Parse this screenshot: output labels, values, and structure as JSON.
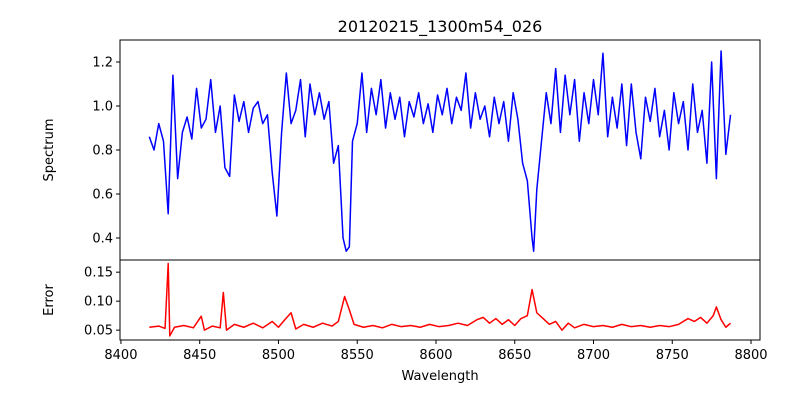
{
  "chart_data": [
    {
      "type": "line",
      "title": "20120215_1300m54_026",
      "xlabel": "",
      "ylabel": "Spectrum",
      "xlim": [
        8399.4,
        8805.7
      ],
      "ylim": [
        0.3,
        1.3
      ],
      "yticks": [
        0.4,
        0.6,
        0.8,
        1.0,
        1.2
      ],
      "ytick_labels": [
        "0.4",
        "0.6",
        "0.8",
        "1.0",
        "1.2"
      ],
      "color": "#0000ff",
      "grid": false,
      "series": [
        {
          "name": "Spectrum",
          "points": [
            [
              8418,
              0.86
            ],
            [
              8421,
              0.8
            ],
            [
              8424,
              0.92
            ],
            [
              8427,
              0.84
            ],
            [
              8430,
              0.51
            ],
            [
              8433,
              1.14
            ],
            [
              8436,
              0.67
            ],
            [
              8439,
              0.88
            ],
            [
              8442,
              0.95
            ],
            [
              8445,
              0.85
            ],
            [
              8448,
              1.08
            ],
            [
              8451,
              0.9
            ],
            [
              8454,
              0.94
            ],
            [
              8457,
              1.12
            ],
            [
              8460,
              0.88
            ],
            [
              8463,
              1.0
            ],
            [
              8466,
              0.72
            ],
            [
              8469,
              0.68
            ],
            [
              8472,
              1.05
            ],
            [
              8475,
              0.93
            ],
            [
              8478,
              1.02
            ],
            [
              8481,
              0.88
            ],
            [
              8484,
              0.99
            ],
            [
              8487,
              1.02
            ],
            [
              8490,
              0.92
            ],
            [
              8493,
              0.96
            ],
            [
              8496,
              0.7
            ],
            [
              8499,
              0.5
            ],
            [
              8502,
              0.88
            ],
            [
              8505,
              1.15
            ],
            [
              8508,
              0.92
            ],
            [
              8511,
              0.98
            ],
            [
              8514,
              1.12
            ],
            [
              8517,
              0.86
            ],
            [
              8520,
              1.1
            ],
            [
              8523,
              0.96
            ],
            [
              8526,
              1.06
            ],
            [
              8529,
              0.94
            ],
            [
              8532,
              1.02
            ],
            [
              8535,
              0.74
            ],
            [
              8538,
              0.82
            ],
            [
              8541,
              0.4
            ],
            [
              8543,
              0.34
            ],
            [
              8545,
              0.36
            ],
            [
              8547,
              0.84
            ],
            [
              8550,
              0.92
            ],
            [
              8553,
              1.15
            ],
            [
              8556,
              0.88
            ],
            [
              8559,
              1.08
            ],
            [
              8562,
              0.96
            ],
            [
              8565,
              1.12
            ],
            [
              8568,
              0.9
            ],
            [
              8571,
              1.06
            ],
            [
              8574,
              0.94
            ],
            [
              8577,
              1.04
            ],
            [
              8580,
              0.86
            ],
            [
              8583,
              1.02
            ],
            [
              8586,
              0.95
            ],
            [
              8589,
              1.06
            ],
            [
              8592,
              0.92
            ],
            [
              8595,
              1.01
            ],
            [
              8598,
              0.88
            ],
            [
              8601,
              1.05
            ],
            [
              8604,
              0.96
            ],
            [
              8607,
              1.08
            ],
            [
              8610,
              0.92
            ],
            [
              8613,
              1.04
            ],
            [
              8616,
              0.98
            ],
            [
              8619,
              1.15
            ],
            [
              8622,
              0.9
            ],
            [
              8625,
              1.06
            ],
            [
              8628,
              0.94
            ],
            [
              8631,
              1.0
            ],
            [
              8634,
              0.86
            ],
            [
              8637,
              1.04
            ],
            [
              8640,
              0.92
            ],
            [
              8643,
              1.02
            ],
            [
              8646,
              0.84
            ],
            [
              8649,
              1.06
            ],
            [
              8652,
              0.94
            ],
            [
              8655,
              0.74
            ],
            [
              8658,
              0.66
            ],
            [
              8661,
              0.4
            ],
            [
              8662,
              0.34
            ],
            [
              8664,
              0.62
            ],
            [
              8667,
              0.84
            ],
            [
              8670,
              1.06
            ],
            [
              8673,
              0.92
            ],
            [
              8676,
              1.17
            ],
            [
              8679,
              0.88
            ],
            [
              8682,
              1.14
            ],
            [
              8685,
              0.96
            ],
            [
              8688,
              1.12
            ],
            [
              8691,
              0.84
            ],
            [
              8694,
              1.06
            ],
            [
              8697,
              0.92
            ],
            [
              8700,
              1.12
            ],
            [
              8703,
              0.96
            ],
            [
              8706,
              1.24
            ],
            [
              8709,
              0.86
            ],
            [
              8712,
              1.04
            ],
            [
              8715,
              0.9
            ],
            [
              8718,
              1.1
            ],
            [
              8721,
              0.82
            ],
            [
              8724,
              1.1
            ],
            [
              8727,
              0.88
            ],
            [
              8730,
              0.76
            ],
            [
              8733,
              1.04
            ],
            [
              8736,
              0.93
            ],
            [
              8739,
              1.08
            ],
            [
              8742,
              0.86
            ],
            [
              8745,
              0.98
            ],
            [
              8748,
              0.8
            ],
            [
              8751,
              1.06
            ],
            [
              8754,
              0.92
            ],
            [
              8757,
              1.02
            ],
            [
              8760,
              0.8
            ],
            [
              8763,
              1.1
            ],
            [
              8766,
              0.88
            ],
            [
              8769,
              0.98
            ],
            [
              8772,
              0.74
            ],
            [
              8775,
              1.2
            ],
            [
              8778,
              0.67
            ],
            [
              8781,
              1.25
            ],
            [
              8784,
              0.78
            ],
            [
              8787,
              0.96
            ]
          ]
        }
      ]
    },
    {
      "type": "line",
      "title": "",
      "xlabel": "Wavelength",
      "ylabel": "Error",
      "xlim": [
        8399.4,
        8805.7
      ],
      "ylim": [
        0.033,
        0.171
      ],
      "xticks": [
        8400,
        8450,
        8500,
        8550,
        8600,
        8650,
        8700,
        8750,
        8800
      ],
      "xtick_labels": [
        "8400",
        "8450",
        "8500",
        "8550",
        "8600",
        "8650",
        "8700",
        "8750",
        "8800"
      ],
      "yticks": [
        0.05,
        0.1,
        0.15
      ],
      "ytick_labels": [
        "0.05",
        "0.10",
        "0.15"
      ],
      "color": "#ff0000",
      "grid": false,
      "series": [
        {
          "name": "Error",
          "points": [
            [
              8418,
              0.055
            ],
            [
              8424,
              0.057
            ],
            [
              8428,
              0.053
            ],
            [
              8430,
              0.165
            ],
            [
              8431,
              0.04
            ],
            [
              8434,
              0.055
            ],
            [
              8440,
              0.058
            ],
            [
              8446,
              0.054
            ],
            [
              8451,
              0.074
            ],
            [
              8453,
              0.05
            ],
            [
              8458,
              0.057
            ],
            [
              8463,
              0.054
            ],
            [
              8465,
              0.115
            ],
            [
              8467,
              0.05
            ],
            [
              8472,
              0.06
            ],
            [
              8478,
              0.055
            ],
            [
              8484,
              0.062
            ],
            [
              8490,
              0.054
            ],
            [
              8496,
              0.065
            ],
            [
              8500,
              0.055
            ],
            [
              8504,
              0.068
            ],
            [
              8508,
              0.08
            ],
            [
              8511,
              0.052
            ],
            [
              8516,
              0.06
            ],
            [
              8522,
              0.055
            ],
            [
              8528,
              0.062
            ],
            [
              8534,
              0.057
            ],
            [
              8538,
              0.065
            ],
            [
              8542,
              0.108
            ],
            [
              8545,
              0.085
            ],
            [
              8548,
              0.06
            ],
            [
              8554,
              0.055
            ],
            [
              8560,
              0.058
            ],
            [
              8566,
              0.054
            ],
            [
              8572,
              0.06
            ],
            [
              8578,
              0.056
            ],
            [
              8584,
              0.058
            ],
            [
              8590,
              0.055
            ],
            [
              8596,
              0.06
            ],
            [
              8602,
              0.056
            ],
            [
              8608,
              0.058
            ],
            [
              8614,
              0.062
            ],
            [
              8620,
              0.058
            ],
            [
              8626,
              0.068
            ],
            [
              8630,
              0.072
            ],
            [
              8634,
              0.062
            ],
            [
              8638,
              0.07
            ],
            [
              8642,
              0.06
            ],
            [
              8646,
              0.068
            ],
            [
              8650,
              0.058
            ],
            [
              8654,
              0.07
            ],
            [
              8658,
              0.075
            ],
            [
              8661,
              0.12
            ],
            [
              8664,
              0.08
            ],
            [
              8668,
              0.07
            ],
            [
              8672,
              0.06
            ],
            [
              8676,
              0.065
            ],
            [
              8680,
              0.05
            ],
            [
              8684,
              0.062
            ],
            [
              8688,
              0.054
            ],
            [
              8694,
              0.06
            ],
            [
              8700,
              0.056
            ],
            [
              8706,
              0.058
            ],
            [
              8712,
              0.055
            ],
            [
              8718,
              0.06
            ],
            [
              8724,
              0.056
            ],
            [
              8730,
              0.058
            ],
            [
              8736,
              0.055
            ],
            [
              8742,
              0.058
            ],
            [
              8748,
              0.056
            ],
            [
              8754,
              0.06
            ],
            [
              8760,
              0.07
            ],
            [
              8764,
              0.065
            ],
            [
              8768,
              0.072
            ],
            [
              8772,
              0.062
            ],
            [
              8776,
              0.075
            ],
            [
              8778,
              0.09
            ],
            [
              8781,
              0.068
            ],
            [
              8784,
              0.055
            ],
            [
              8787,
              0.062
            ]
          ]
        }
      ]
    }
  ]
}
